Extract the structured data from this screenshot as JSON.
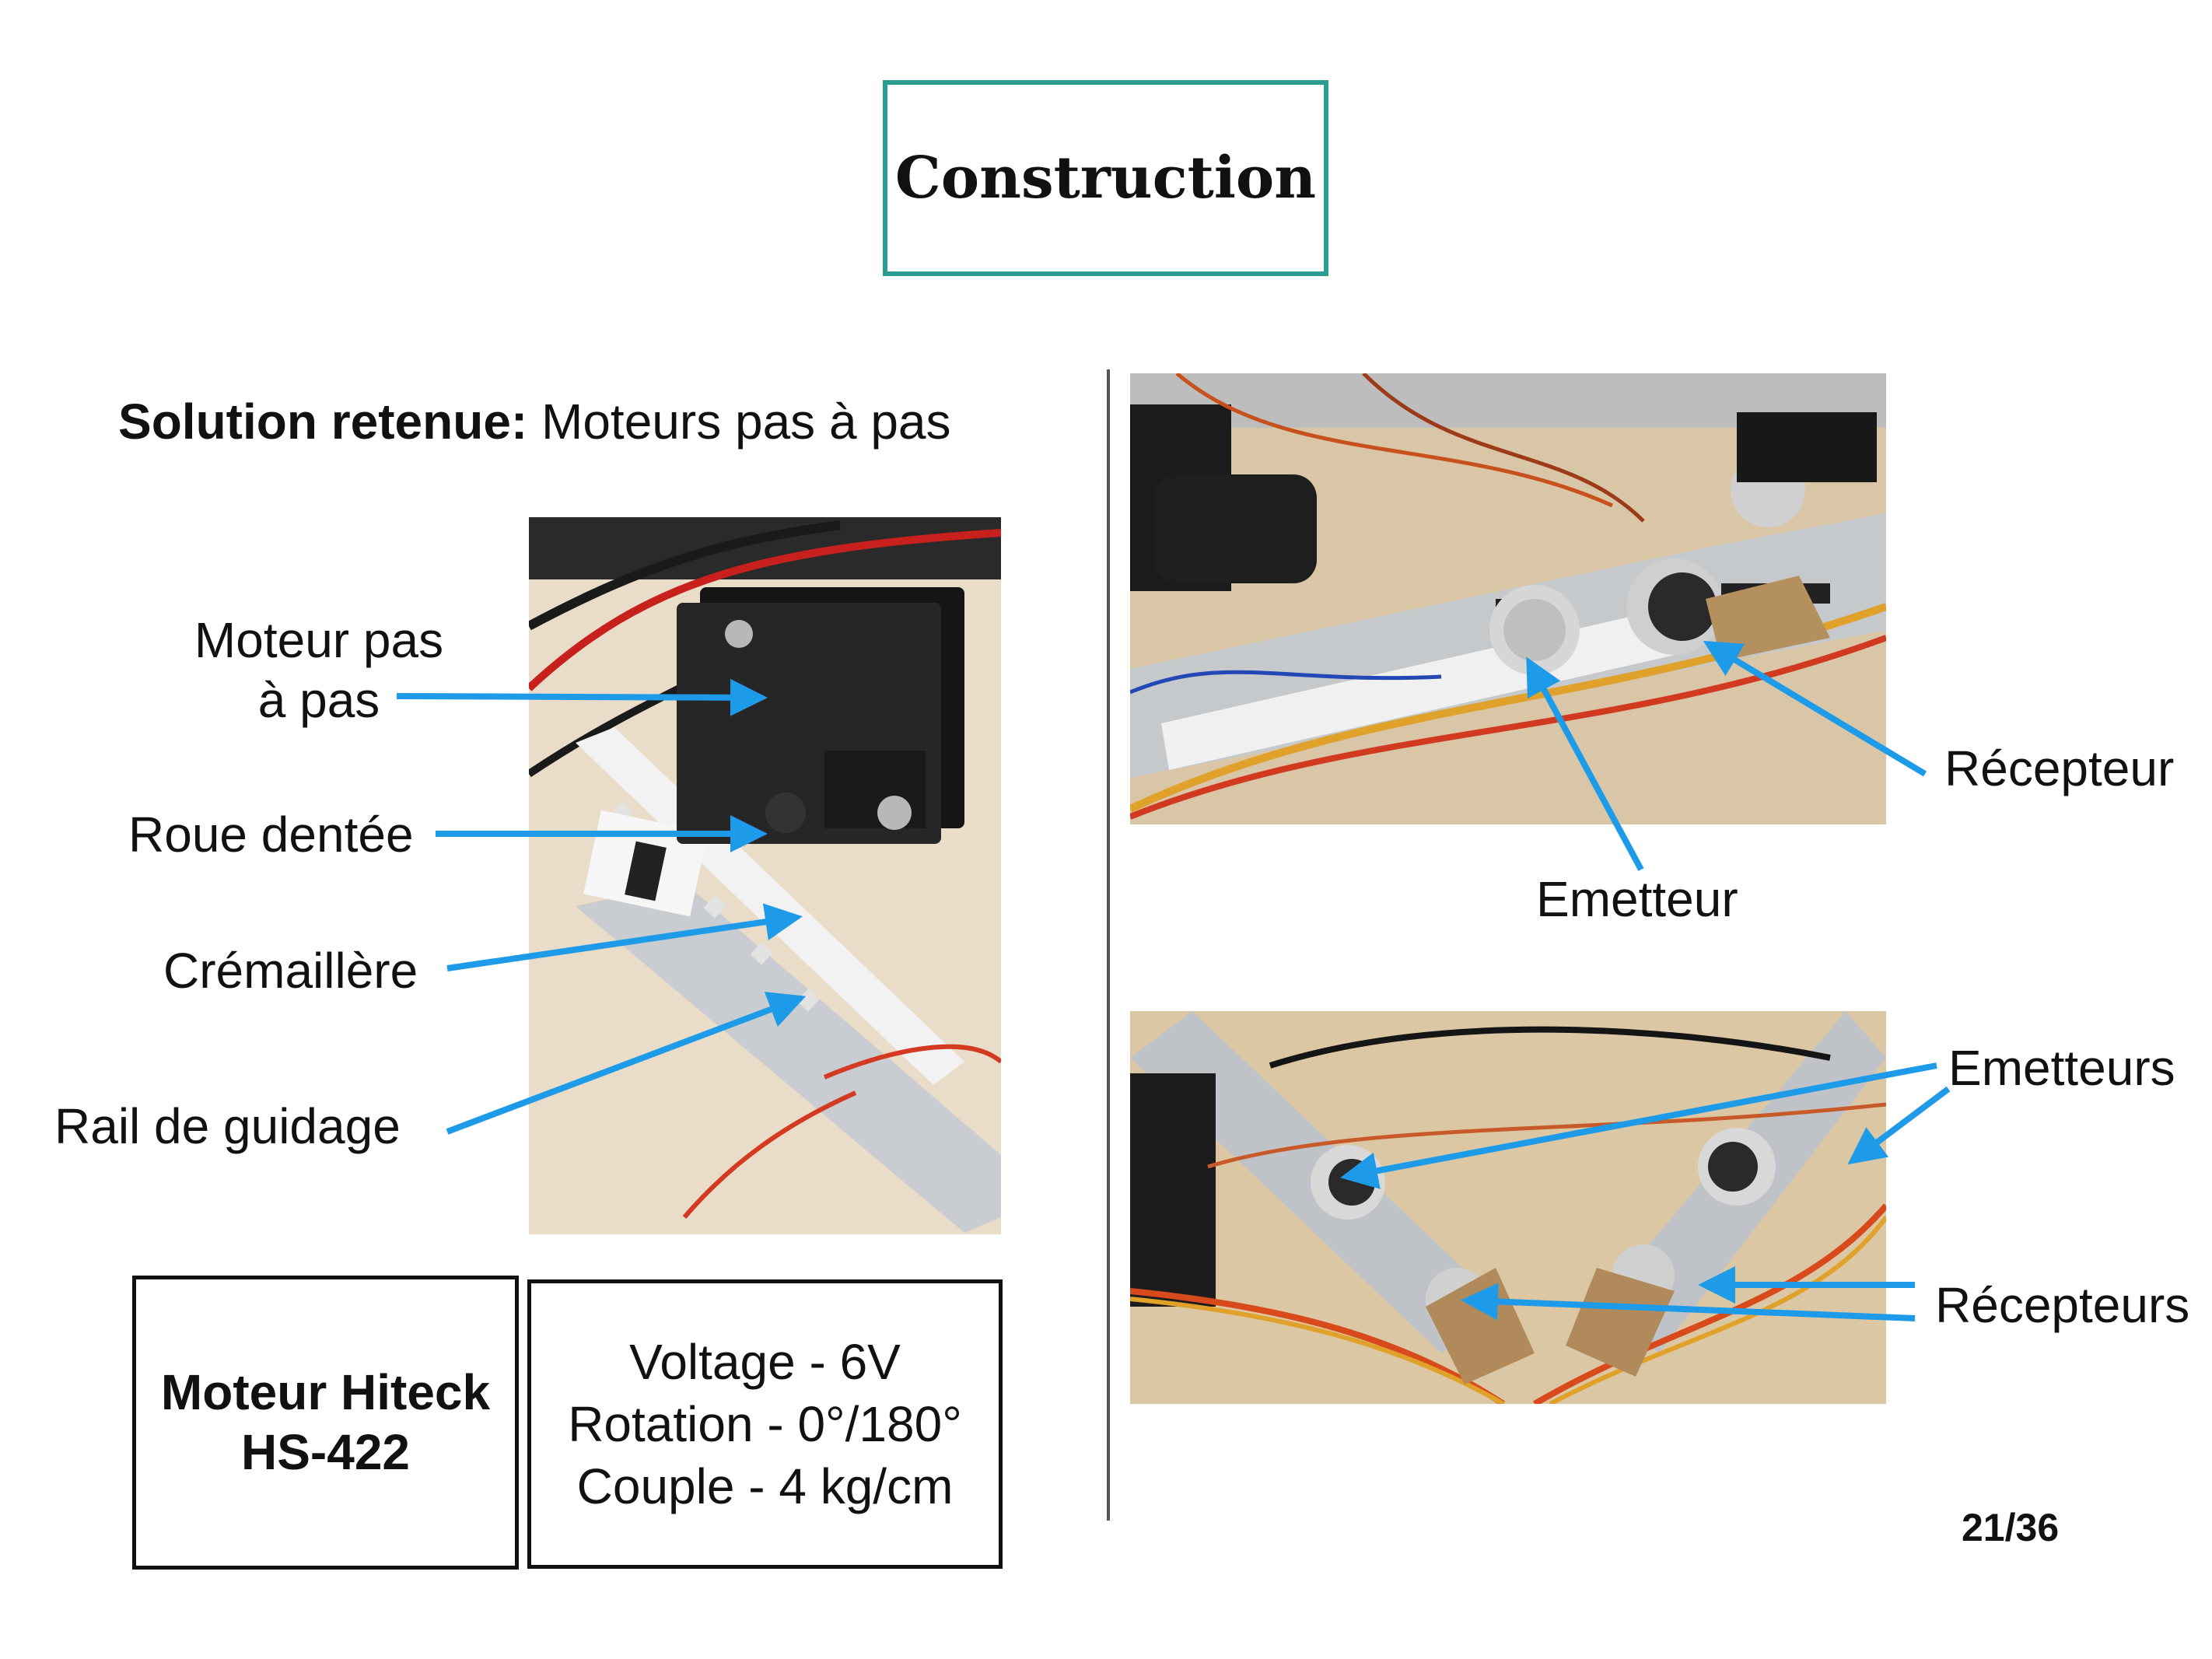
{
  "title": "Construction",
  "solution": {
    "label": "Solution retenue:",
    "value": " Moteurs pas à pas"
  },
  "servo_labels": {
    "motor_line1": "Moteur pas",
    "motor_line2": "à pas",
    "gear": "Roue dentée",
    "rack": "Crémaillère",
    "rail": "Rail de guidage"
  },
  "sensor_labels": {
    "receiver": "Récepteur",
    "emitter": "Emetteur",
    "emitters": "Emetteurs",
    "receivers": "Récepteurs"
  },
  "model_box": {
    "line1": "Moteur Hiteck",
    "line2": "HS-422"
  },
  "specs": {
    "voltage": "Voltage - 6V",
    "rotation": "Rotation - 0°/180°",
    "torque": "Couple - 4 kg/cm"
  },
  "page_number": "21/36",
  "colors": {
    "title_border": "#2a9d93",
    "arrow": "#1e9be8"
  }
}
